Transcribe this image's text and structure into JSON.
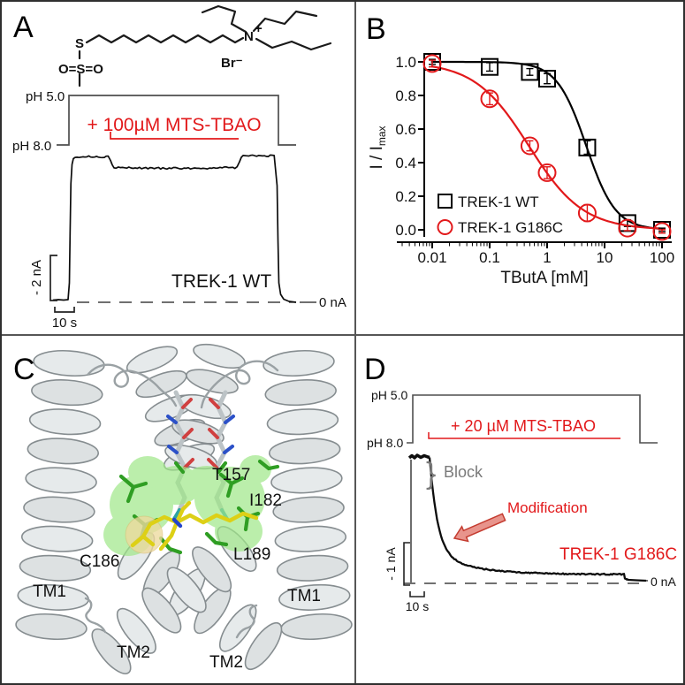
{
  "figure": {
    "accent_red": "#e2191b",
    "trace_black": "#0d0d0d",
    "ph_trace_gray": "#4f4f4f",
    "helix_gray": "#e1e5e6",
    "surface_green": "#9fe788",
    "stick_green": "#2f9e23",
    "ligand_yellow": "#ddd016"
  },
  "panel_a": {
    "letter": "A",
    "molecule": {
      "thiol_s": "S",
      "sulfonyl": "O=S=O",
      "nitrogen": "N",
      "charge": "+",
      "counterion": "Br⁻"
    },
    "ph_high": "pH 5.0",
    "ph_low": "pH 8.0",
    "drug_application": "+ 100µM MTS-TBAO",
    "channel": "TREK-1 WT",
    "current_scale": "- 2 nA",
    "time_scale": "10 s",
    "zero_current": "0 nA"
  },
  "panel_b": {
    "letter": "B"
  },
  "chart_data": {
    "type": "scatter",
    "xscale": "log",
    "x": [
      0.01,
      0.1,
      0.5,
      1,
      5,
      25,
      100
    ],
    "series": [
      {
        "name": "TREK-1 WT",
        "marker": "square",
        "color": "#000000",
        "values": [
          1.0,
          0.97,
          0.94,
          0.9,
          0.49,
          0.04,
          0.0
        ],
        "errors": [
          0.015,
          0.025,
          0.02,
          0.03,
          0.04,
          0.02,
          0.01
        ],
        "fit_ic50_mM": 4.8,
        "fit_hill": 1.7
      },
      {
        "name": "TREK-1 G186C",
        "marker": "circle",
        "color": "#e2191b",
        "values": [
          0.99,
          0.78,
          0.5,
          0.34,
          0.1,
          0.01,
          -0.01
        ],
        "errors": [
          0.02,
          0.035,
          0.03,
          0.035,
          0.05,
          0.015,
          0.01
        ],
        "fit_ic50_mM": 0.48,
        "fit_hill": 0.92
      }
    ],
    "xlabel": "TButA [mM]",
    "ylabel": "I / I",
    "ylabel_sub": "max",
    "xticks": [
      0.01,
      0.1,
      1,
      10,
      100
    ],
    "xtick_labels": [
      "0.01",
      "0.1",
      "1",
      "10",
      "100"
    ],
    "yticks": [
      0.0,
      0.2,
      0.4,
      0.6,
      0.8,
      1.0
    ],
    "ylim": [
      0.0,
      1.0
    ],
    "xlim": [
      0.005,
      200
    ],
    "grid": false,
    "legend_position": "lower-left"
  },
  "panel_c": {
    "letter": "C",
    "residues": {
      "t157": "T157",
      "i182": "I182",
      "c186": "C186",
      "l189": "L189"
    },
    "helix_labels": {
      "tm1_left": "TM1",
      "tm1_right": "TM1",
      "tm2_left": "TM2",
      "tm2_right": "TM2"
    }
  },
  "panel_d": {
    "letter": "D",
    "ph_high": "pH 5.0",
    "ph_low": "pH 8.0",
    "drug_application": "+ 20 µM MTS-TBAO",
    "block_brace": "}",
    "block_label": "Block",
    "modification_label": "Modification",
    "channel": "TREK-1 G186C",
    "current_scale": "- 1 nA",
    "time_scale": "10 s",
    "zero_current": "0 nA"
  }
}
